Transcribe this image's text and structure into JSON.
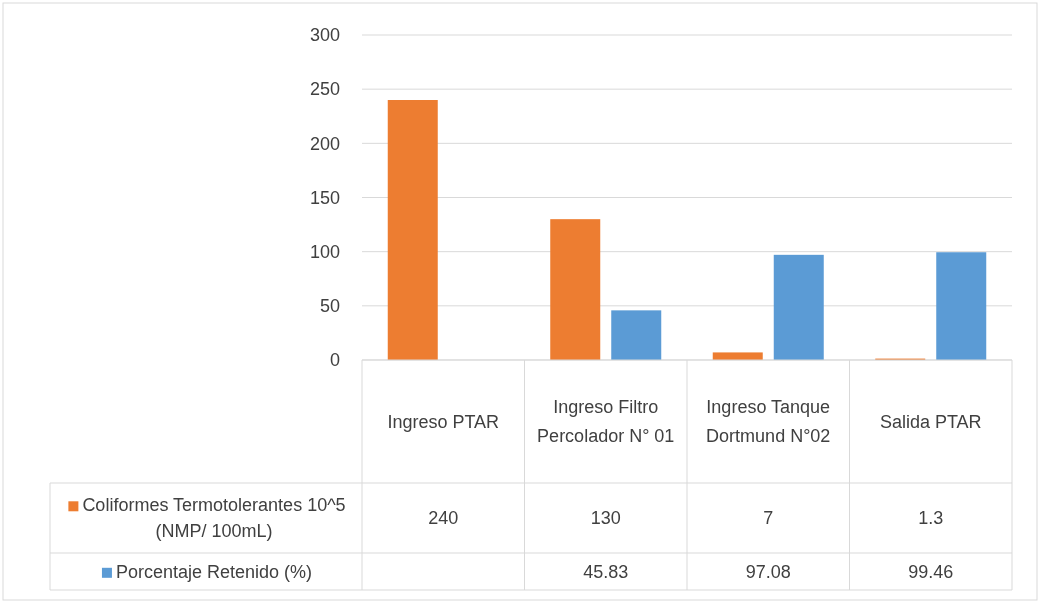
{
  "chart_data": {
    "type": "bar",
    "categories": [
      "Ingreso PTAR",
      "Ingreso Filtro Percolador N° 01",
      "Ingreso Tanque Dortmund N°02",
      "Salida PTAR"
    ],
    "series": [
      {
        "name": "Coliformes Termotolerantes 10^5 (NMP/ 100mL)",
        "color": "#ed7d31",
        "values": [
          240,
          130,
          7,
          1.3
        ]
      },
      {
        "name": "Porcentaje Retenido (%)",
        "color": "#5b9bd5",
        "values": [
          null,
          45.83,
          97.08,
          99.46
        ]
      }
    ],
    "ylim": [
      0,
      300
    ],
    "yticks": [
      0,
      50,
      100,
      150,
      200,
      250,
      300
    ],
    "grid": "y",
    "legend": "bottom",
    "data_labels": true
  }
}
